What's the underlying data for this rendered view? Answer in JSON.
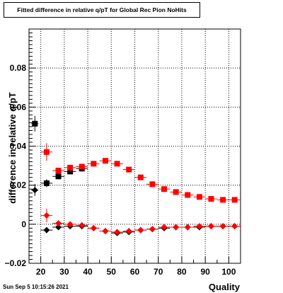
{
  "chart_data": {
    "type": "scatter",
    "title": "Fitted difference in relative q/pT for Global Rec Pion NoHits",
    "xlabel": "Quality",
    "ylabel": "difference in relative q/pT",
    "xlim": [
      15,
      105
    ],
    "ylim": [
      -0.02,
      0.1
    ],
    "xticks": [
      20,
      30,
      40,
      50,
      60,
      70,
      80,
      90,
      100
    ],
    "yticks": [
      -0.02,
      0,
      0.02,
      0.04,
      0.06,
      0.08
    ],
    "ytick_labels": [
      "−0.02",
      "0",
      "0.02",
      "0.04",
      "0.06",
      "0.08"
    ],
    "grid": true,
    "series": [
      {
        "marker": "square",
        "color": "#000000",
        "points": [
          {
            "x": 17.5,
            "y": 0.0515,
            "xerr": 1.5,
            "yerr": 0.004
          },
          {
            "x": 22.5,
            "y": 0.021,
            "xerr": 2.5,
            "yerr": 0.002
          },
          {
            "x": 27.5,
            "y": 0.0245,
            "xerr": 2.5,
            "yerr": 0.0015
          },
          {
            "x": 32.5,
            "y": 0.027,
            "xerr": 2.5,
            "yerr": 0.001
          },
          {
            "x": 37.5,
            "y": 0.0285,
            "xerr": 2.5,
            "yerr": 0.001
          }
        ]
      },
      {
        "marker": "diamond",
        "color": "#000000",
        "points": [
          {
            "x": 17.5,
            "y": 0.0175,
            "xerr": 1.5,
            "yerr": 0.003
          },
          {
            "x": 22.5,
            "y": -0.003,
            "xerr": 2.5,
            "yerr": 0.0005
          },
          {
            "x": 27.5,
            "y": -0.0015,
            "xerr": 2.5,
            "yerr": 0.0005
          },
          {
            "x": 32.5,
            "y": -0.001,
            "xerr": 2.5,
            "yerr": 0.0005
          },
          {
            "x": 37.5,
            "y": -0.001,
            "xerr": 2.5,
            "yerr": 0.0005
          },
          {
            "x": 42.5,
            "y": -0.002,
            "xerr": 2.5,
            "yerr": 0.0005
          },
          {
            "x": 47.5,
            "y": -0.0035,
            "xerr": 2.5,
            "yerr": 0.0005
          },
          {
            "x": 52.5,
            "y": -0.0045,
            "xerr": 2.5,
            "yerr": 0.0005
          },
          {
            "x": 57.5,
            "y": -0.004,
            "xerr": 2.5,
            "yerr": 0.0005
          },
          {
            "x": 62.5,
            "y": -0.003,
            "xerr": 2.5,
            "yerr": 0.0005
          },
          {
            "x": 67.5,
            "y": -0.0025,
            "xerr": 2.5,
            "yerr": 0.0005
          },
          {
            "x": 72.5,
            "y": -0.002,
            "xerr": 2.5,
            "yerr": 0.0005
          },
          {
            "x": 77.5,
            "y": -0.0015,
            "xerr": 2.5,
            "yerr": 0.0005
          },
          {
            "x": 82.5,
            "y": -0.0015,
            "xerr": 2.5,
            "yerr": 0.0005
          },
          {
            "x": 87.5,
            "y": -0.0015,
            "xerr": 2.5,
            "yerr": 0.0005
          },
          {
            "x": 92.5,
            "y": -0.001,
            "xerr": 2.5,
            "yerr": 0.0005
          },
          {
            "x": 97.5,
            "y": -0.001,
            "xerr": 2.5,
            "yerr": 0.0005
          },
          {
            "x": 102.5,
            "y": -0.001,
            "xerr": 2.5,
            "yerr": 0.0005
          }
        ]
      },
      {
        "marker": "square",
        "color": "#ff0000",
        "points": [
          {
            "x": 22.5,
            "y": 0.037,
            "xerr": 2.5,
            "yerr": 0.0045
          },
          {
            "x": 27.5,
            "y": 0.0275,
            "xerr": 2.5,
            "yerr": 0.0015
          },
          {
            "x": 32.5,
            "y": 0.029,
            "xerr": 2.5,
            "yerr": 0.001
          },
          {
            "x": 37.5,
            "y": 0.0295,
            "xerr": 2.5,
            "yerr": 0.001
          },
          {
            "x": 42.5,
            "y": 0.031,
            "xerr": 2.5,
            "yerr": 0.0008
          },
          {
            "x": 47.5,
            "y": 0.0325,
            "xerr": 2.5,
            "yerr": 0.0008
          },
          {
            "x": 52.5,
            "y": 0.031,
            "xerr": 2.5,
            "yerr": 0.0008
          },
          {
            "x": 57.5,
            "y": 0.028,
            "xerr": 2.5,
            "yerr": 0.0008
          },
          {
            "x": 62.5,
            "y": 0.024,
            "xerr": 2.5,
            "yerr": 0.0008
          },
          {
            "x": 67.5,
            "y": 0.0205,
            "xerr": 2.5,
            "yerr": 0.0008
          },
          {
            "x": 72.5,
            "y": 0.018,
            "xerr": 2.5,
            "yerr": 0.0008
          },
          {
            "x": 77.5,
            "y": 0.0165,
            "xerr": 2.5,
            "yerr": 0.0008
          },
          {
            "x": 82.5,
            "y": 0.015,
            "xerr": 2.5,
            "yerr": 0.0008
          },
          {
            "x": 87.5,
            "y": 0.014,
            "xerr": 2.5,
            "yerr": 0.0008
          },
          {
            "x": 92.5,
            "y": 0.013,
            "xerr": 2.5,
            "yerr": 0.0008
          },
          {
            "x": 97.5,
            "y": 0.0125,
            "xerr": 2.5,
            "yerr": 0.0008
          },
          {
            "x": 102.5,
            "y": 0.0125,
            "xerr": 2.5,
            "yerr": 0.0008
          }
        ]
      },
      {
        "marker": "diamond",
        "color": "#ff0000",
        "points": [
          {
            "x": 22.5,
            "y": 0.0045,
            "xerr": 2.5,
            "yerr": 0.0035
          },
          {
            "x": 27.5,
            "y": 0.0005,
            "xerr": 2.5,
            "yerr": 0.0008
          },
          {
            "x": 32.5,
            "y": 0.0,
            "xerr": 2.5,
            "yerr": 0.0005
          },
          {
            "x": 37.5,
            "y": -0.0005,
            "xerr": 2.5,
            "yerr": 0.0005
          },
          {
            "x": 42.5,
            "y": -0.002,
            "xerr": 2.5,
            "yerr": 0.0005
          },
          {
            "x": 47.5,
            "y": -0.0035,
            "xerr": 2.5,
            "yerr": 0.0005
          },
          {
            "x": 52.5,
            "y": -0.004,
            "xerr": 2.5,
            "yerr": 0.0005
          },
          {
            "x": 57.5,
            "y": -0.0035,
            "xerr": 2.5,
            "yerr": 0.0005
          },
          {
            "x": 62.5,
            "y": -0.003,
            "xerr": 2.5,
            "yerr": 0.0005
          },
          {
            "x": 67.5,
            "y": -0.0025,
            "xerr": 2.5,
            "yerr": 0.0005
          },
          {
            "x": 72.5,
            "y": -0.0015,
            "xerr": 2.5,
            "yerr": 0.0005
          },
          {
            "x": 77.5,
            "y": -0.0015,
            "xerr": 2.5,
            "yerr": 0.0005
          },
          {
            "x": 82.5,
            "y": -0.0015,
            "xerr": 2.5,
            "yerr": 0.0005
          },
          {
            "x": 87.5,
            "y": -0.001,
            "xerr": 2.5,
            "yerr": 0.0005
          },
          {
            "x": 92.5,
            "y": -0.001,
            "xerr": 2.5,
            "yerr": 0.0005
          },
          {
            "x": 97.5,
            "y": -0.001,
            "xerr": 2.5,
            "yerr": 0.0005
          },
          {
            "x": 102.5,
            "y": -0.001,
            "xerr": 2.5,
            "yerr": 0.0005
          }
        ]
      }
    ]
  },
  "timestamp": "Sun Sep  5 10:15:26 2021"
}
